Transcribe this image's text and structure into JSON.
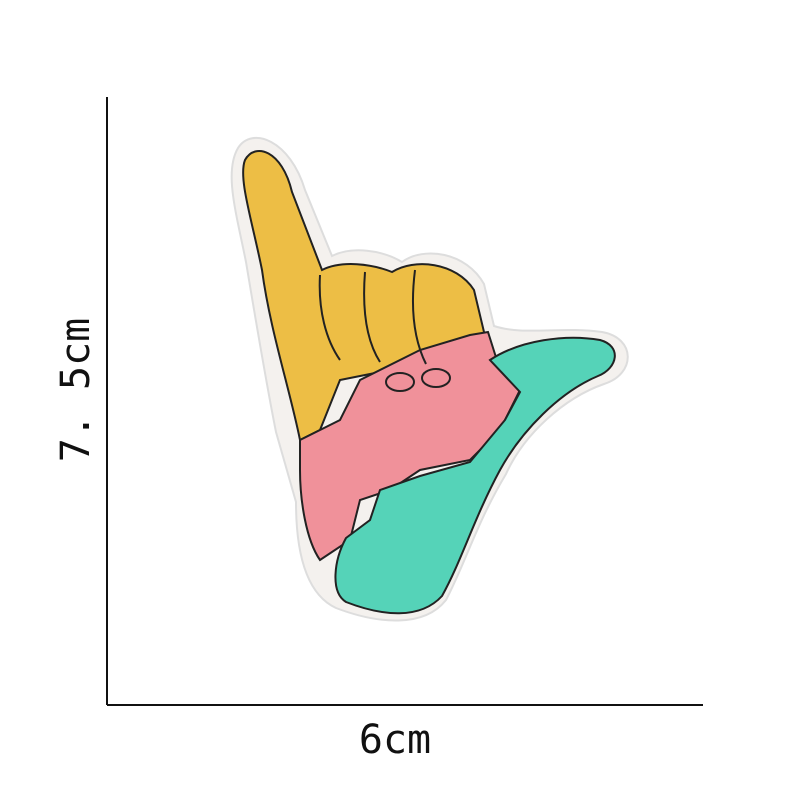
{
  "dimensions": {
    "height": "7. 5cm",
    "width": "6cm"
  }
}
